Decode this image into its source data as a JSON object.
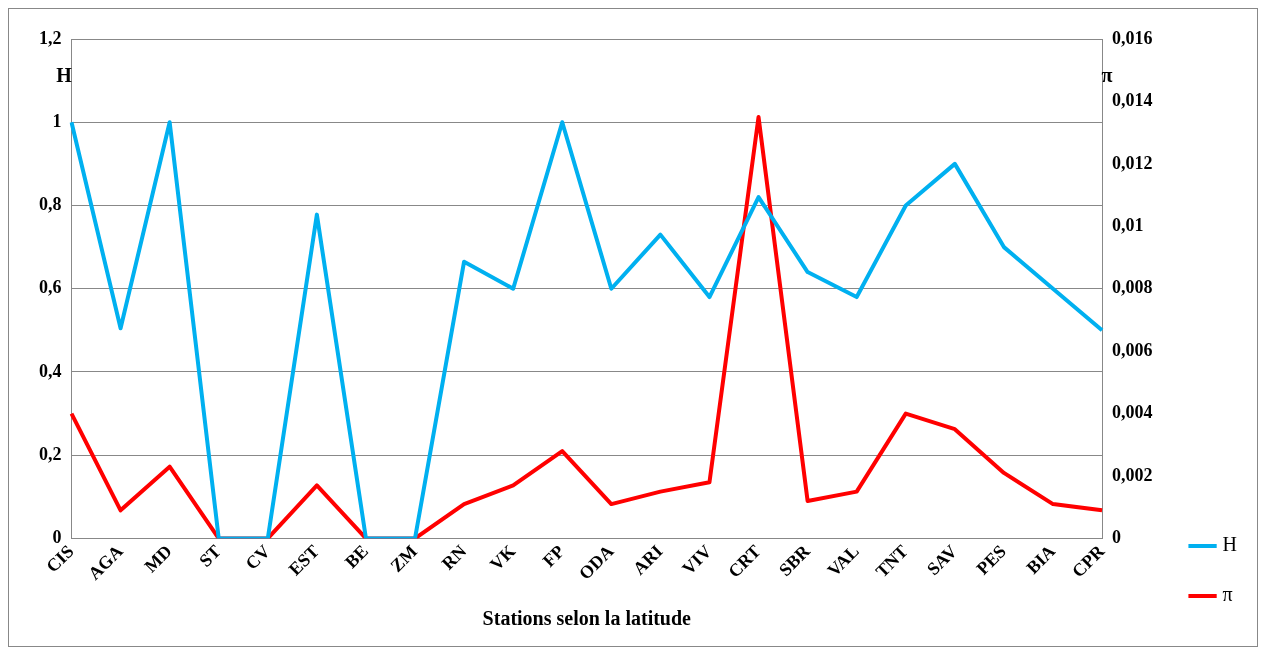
{
  "chart_data": {
    "type": "line",
    "xlabel": "Stations selon la latitude",
    "ylabel": "H",
    "y2label": "π",
    "categories": [
      "CIS",
      "AGA",
      "MD",
      "ST",
      "CV",
      "EST",
      "BE",
      "ZM",
      "RN",
      "VK",
      "FP",
      "ODA",
      "ARI",
      "VIV",
      "CRT",
      "SBR",
      "VAL",
      "TNT",
      "SAV",
      "PES",
      "BIA",
      "CPR"
    ],
    "series": [
      {
        "name": "H",
        "color": "#00b0f0",
        "values": [
          1.0,
          0.505,
          1.0,
          0,
          0,
          0.778,
          0,
          0,
          0.665,
          0.6,
          1.0,
          0.6,
          0.73,
          0.58,
          0.82,
          0.64,
          0.58,
          0.8,
          0.9,
          0.7,
          0.6,
          0.5
        ]
      },
      {
        "name": "π",
        "color": "#ff0000",
        "axis": "y2",
        "values": [
          0.004,
          0.0009,
          0.0023,
          0,
          0,
          0.0017,
          0,
          0,
          0.0011,
          0.0017,
          0.0028,
          0.0011,
          0.0015,
          0.0018,
          0.0135,
          0.0012,
          0.0015,
          0.004,
          0.0035,
          0.0021,
          0.0011,
          0.0009
        ]
      }
    ],
    "ylim": [
      0,
      1.2
    ],
    "yticks": [
      0,
      {
        "value": 0.2,
        "label": "0,2"
      },
      {
        "value": 0.4,
        "label": "0,4"
      },
      {
        "value": 0.6,
        "label": "0,6"
      },
      {
        "value": 0.8,
        "label": "0,8"
      },
      1,
      {
        "value": 1.2,
        "label": "1,2"
      }
    ],
    "y2lim": [
      0,
      0.016
    ],
    "y2ticks": [
      0,
      {
        "value": 0.002,
        "label": "0,002"
      },
      {
        "value": 0.004,
        "label": "0,004"
      },
      {
        "value": 0.006,
        "label": "0,006"
      },
      {
        "value": 0.008,
        "label": "0,008"
      },
      {
        "value": 0.01,
        "label": "0,01"
      },
      {
        "value": 0.012,
        "label": "0,012"
      },
      {
        "value": 0.014,
        "label": "0,014"
      },
      {
        "value": 0.016,
        "label": "0,016"
      }
    ],
    "grid": "y",
    "legend": "bottom right",
    "marker": "none",
    "line_style": "solid"
  }
}
